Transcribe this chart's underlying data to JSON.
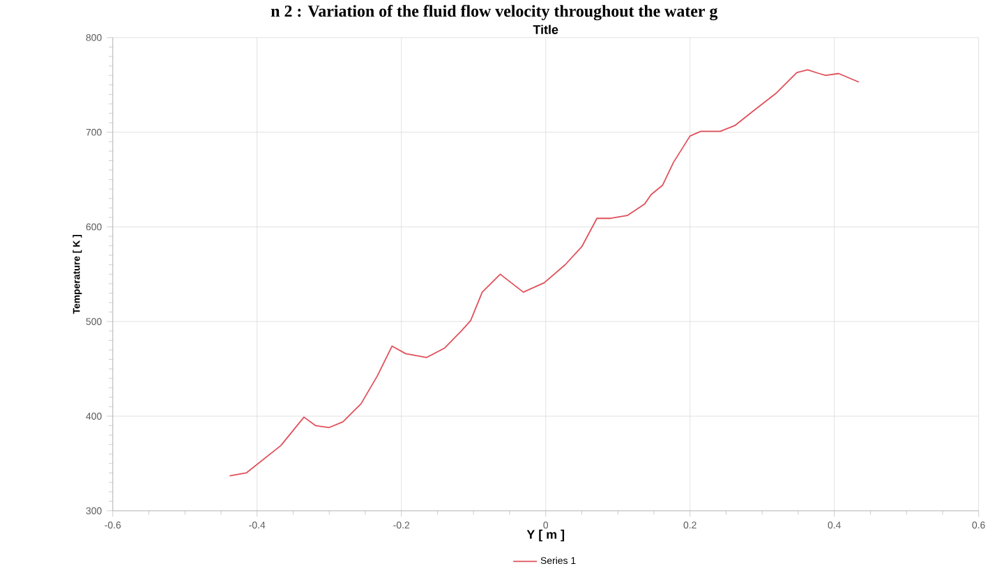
{
  "chart_data": {
    "type": "line",
    "title": "Title",
    "xlabel": "Y [ m ]",
    "ylabel": "Temperature [ K ]",
    "annotations": [
      "n 2 : Variation of the fluid flow velocity throughout the water g"
    ],
    "xlim": [
      -0.6,
      0.6
    ],
    "xticks": [
      -0.6,
      -0.4,
      -0.2,
      0,
      0.2,
      0.4,
      0.6
    ],
    "ylim": [
      300,
      800
    ],
    "yticks": [
      300,
      400,
      500,
      600,
      700,
      800
    ],
    "grid": true,
    "legend": "bottom",
    "marker": "none",
    "line_style": "solid",
    "series": [
      {
        "name": "Series 1",
        "color": "#e0505a",
        "x": [
          -0.438,
          -0.415,
          -0.367,
          -0.335,
          -0.319,
          -0.3,
          -0.281,
          -0.256,
          -0.233,
          -0.213,
          -0.194,
          -0.165,
          -0.14,
          -0.117,
          -0.104,
          -0.088,
          -0.063,
          -0.031,
          -0.002,
          0.027,
          0.05,
          0.071,
          0.09,
          0.113,
          0.137,
          0.146,
          0.162,
          0.177,
          0.2,
          0.215,
          0.242,
          0.262,
          0.287,
          0.319,
          0.348,
          0.363,
          0.379,
          0.388,
          0.406,
          0.434
        ],
        "values": [
          337,
          340,
          369,
          399,
          390,
          388,
          394,
          413,
          443,
          474,
          466,
          462,
          472,
          490,
          501,
          531,
          550,
          531,
          541,
          560,
          579,
          609,
          609,
          612,
          624,
          634,
          644,
          668,
          696,
          701,
          701,
          707,
          722,
          741,
          763,
          766,
          762,
          760,
          762,
          753
        ]
      }
    ]
  }
}
